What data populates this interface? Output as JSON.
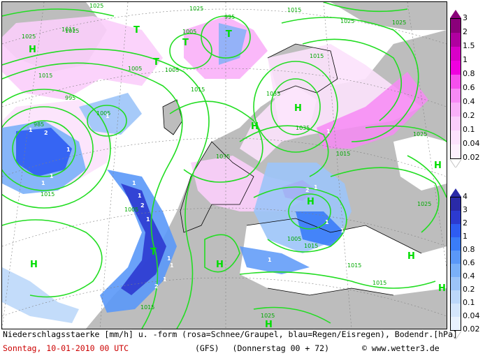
{
  "caption": {
    "line1": "Niederschlagsstaerke [mm/h] u. -form (rosa=Schnee/Graupel, blau=Regen/Eisregen), Bodendr.[hPa]",
    "date": "Sonntag, 10-01-2010  00 UTC",
    "model": "(GFS)",
    "forecast": "(Donnerstag 00 + 72)",
    "copyright": "© www.wetter3.de"
  },
  "legend_snow": {
    "title_color": "#cc00cc",
    "ticks": [
      "3",
      "2",
      "1.5",
      "1",
      "0.8",
      "0.6",
      "0.4",
      "0.2",
      "0.1",
      "0.04",
      "0.02"
    ],
    "colors": [
      "#8a007a",
      "#b000a0",
      "#d800c8",
      "#f000e0",
      "#f650ee",
      "#f78af4",
      "#f9b0f8",
      "#fbcefb",
      "#fce2fc",
      "#fdf0fd"
    ]
  },
  "legend_rain": {
    "ticks": [
      "4",
      "3",
      "2",
      "1",
      "0.8",
      "0.6",
      "0.4",
      "0.2",
      "0.1",
      "0.04",
      "0.02"
    ],
    "colors": [
      "#2a2aa8",
      "#2c3ad0",
      "#2e5cf2",
      "#3a7cf8",
      "#5a98f8",
      "#7ab0f8",
      "#9cc4f8",
      "#bcd8fa",
      "#d4e6fc",
      "#e8f2fe"
    ]
  },
  "map": {
    "pressure_centers": [
      {
        "label": "H"
      },
      {
        "label": "T"
      },
      {
        "label": "T"
      },
      {
        "label": "T"
      },
      {
        "label": "T"
      },
      {
        "label": "H"
      },
      {
        "label": "H"
      },
      {
        "label": "H"
      },
      {
        "label": "H"
      },
      {
        "label": "T"
      },
      {
        "label": "H"
      },
      {
        "label": "H"
      },
      {
        "label": "H"
      },
      {
        "label": "H"
      },
      {
        "label": "H"
      }
    ],
    "isobar_labels": [
      "1025",
      "1015",
      "995",
      "1005",
      "1015",
      "1025",
      "1035",
      "1015",
      "1025",
      "1015",
      "1005",
      "1015",
      "1015",
      "1025",
      "1005",
      "995",
      "985",
      "1005",
      "1015",
      "1025",
      "1005",
      "1015",
      "1025",
      "1035",
      "1035",
      "1015",
      "1025",
      "1015",
      "1005",
      "1015",
      "1015",
      "1025"
    ],
    "rain_amount_labels": [
      "1",
      "2",
      "1",
      "1",
      "1",
      "1",
      "1",
      "2",
      "1",
      "1",
      "1",
      "1",
      "2",
      "1",
      "2",
      "1",
      "2",
      "1",
      "1",
      "1",
      "1"
    ]
  }
}
